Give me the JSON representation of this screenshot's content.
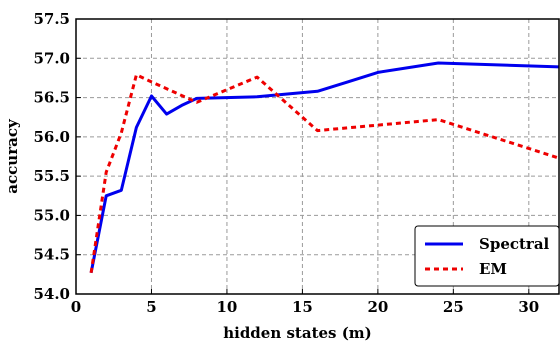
{
  "chart_data": {
    "type": "line",
    "title": "",
    "xlabel": "hidden states (m)",
    "ylabel": "accuracy",
    "xlim": [
      0,
      32
    ],
    "ylim": [
      54.0,
      57.5
    ],
    "xticks": [
      0,
      5,
      10,
      15,
      20,
      25,
      30
    ],
    "yticks": [
      54.0,
      54.5,
      55.0,
      55.5,
      56.0,
      56.5,
      57.0,
      57.5
    ],
    "xtick_labels": [
      "0",
      "5",
      "10",
      "15",
      "20",
      "25",
      "30"
    ],
    "ytick_labels": [
      "54.0",
      "54.5",
      "55.0",
      "55.5",
      "56.0",
      "56.5",
      "57.0",
      "57.5"
    ],
    "grid": true,
    "legend_position": "bottom-right",
    "series": [
      {
        "name": "Spectral",
        "color": "#0000ee",
        "style": "solid",
        "x": [
          1,
          2,
          3,
          4,
          5,
          6,
          7,
          8,
          12,
          16,
          18,
          20,
          24,
          32
        ],
        "y": [
          54.27,
          55.25,
          55.32,
          56.12,
          56.52,
          56.29,
          56.4,
          56.49,
          56.51,
          56.58,
          56.7,
          56.82,
          56.94,
          56.89
        ]
      },
      {
        "name": "EM",
        "color": "#ee0000",
        "style": "dashed",
        "x": [
          1,
          2,
          3,
          4,
          5,
          8,
          12,
          16,
          24,
          32
        ],
        "y": [
          54.27,
          55.55,
          56.05,
          56.79,
          56.7,
          56.44,
          56.76,
          56.08,
          56.22,
          55.73
        ]
      }
    ]
  }
}
